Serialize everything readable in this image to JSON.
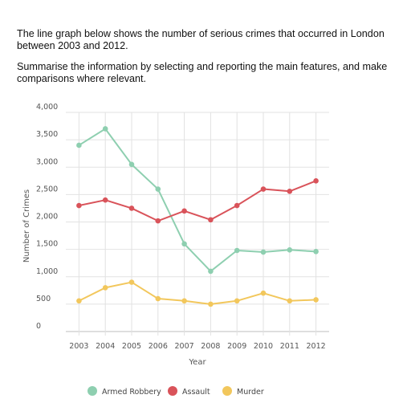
{
  "prompt": {
    "line1": "The line graph below shows the number of serious crimes that occurred in London between 2003 and 2012.",
    "line2": "Summarise the information by selecting and reporting the main features, and make comparisons where relevant."
  },
  "chart_data": {
    "type": "line",
    "title": "",
    "xlabel": "Year",
    "ylabel": "Number of Crimes",
    "categories": [
      "2003",
      "2004",
      "2005",
      "2006",
      "2007",
      "2008",
      "2009",
      "2010",
      "2011",
      "2012"
    ],
    "yticks": [
      0,
      500,
      1000,
      1500,
      2000,
      2500,
      3000,
      3500,
      4000
    ],
    "ytick_labels": [
      "0",
      "500",
      "1,000",
      "1,500",
      "2,000",
      "2,500",
      "3,000",
      "3,500",
      "4,000"
    ],
    "ylim": [
      0,
      4000
    ],
    "grid": true,
    "legend_position": "bottom",
    "series": [
      {
        "name": "Armed Robbery",
        "color": "#8ecfb0",
        "values": [
          3400,
          3700,
          3050,
          2600,
          1600,
          1100,
          1480,
          1450,
          1490,
          1460
        ]
      },
      {
        "name": "Assault",
        "color": "#d9535a",
        "values": [
          2300,
          2400,
          2250,
          2020,
          2200,
          2040,
          2300,
          2600,
          2560,
          2750
        ]
      },
      {
        "name": "Murder",
        "color": "#f2c75c",
        "values": [
          560,
          800,
          900,
          600,
          560,
          500,
          560,
          700,
          560,
          580
        ]
      }
    ]
  }
}
